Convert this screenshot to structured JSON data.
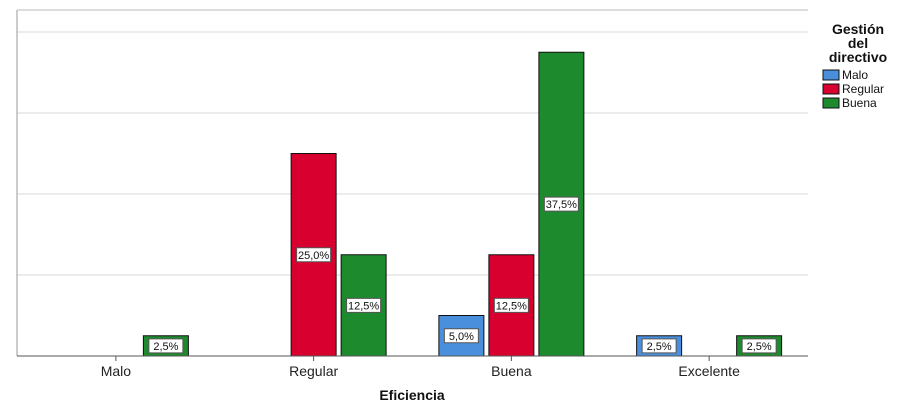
{
  "chart_data": {
    "type": "bar",
    "xlabel": "Eficiencia",
    "ylabel": "",
    "ylim": [
      0,
      40
    ],
    "grid": true,
    "categories": [
      "Malo",
      "Regular",
      "Buena",
      "Excelente"
    ],
    "legend": {
      "title_lines": [
        "Gestión",
        "del",
        "directivo"
      ],
      "placement": "right"
    },
    "series": [
      {
        "name": "Malo",
        "color": "#4a8fdc",
        "values": [
          null,
          null,
          5.0,
          2.5
        ],
        "labels": [
          "",
          "",
          "5,0%",
          "2,5%"
        ]
      },
      {
        "name": "Regular",
        "color": "#d8002f",
        "values": [
          null,
          25.0,
          12.5,
          null
        ],
        "labels": [
          "",
          "25,0%",
          "12,5%",
          ""
        ]
      },
      {
        "name": "Buena",
        "color": "#1e8a2e",
        "values": [
          2.5,
          12.5,
          37.5,
          2.5
        ],
        "labels": [
          "2,5%",
          "12,5%",
          "37,5%",
          "2,5%"
        ]
      }
    ]
  }
}
